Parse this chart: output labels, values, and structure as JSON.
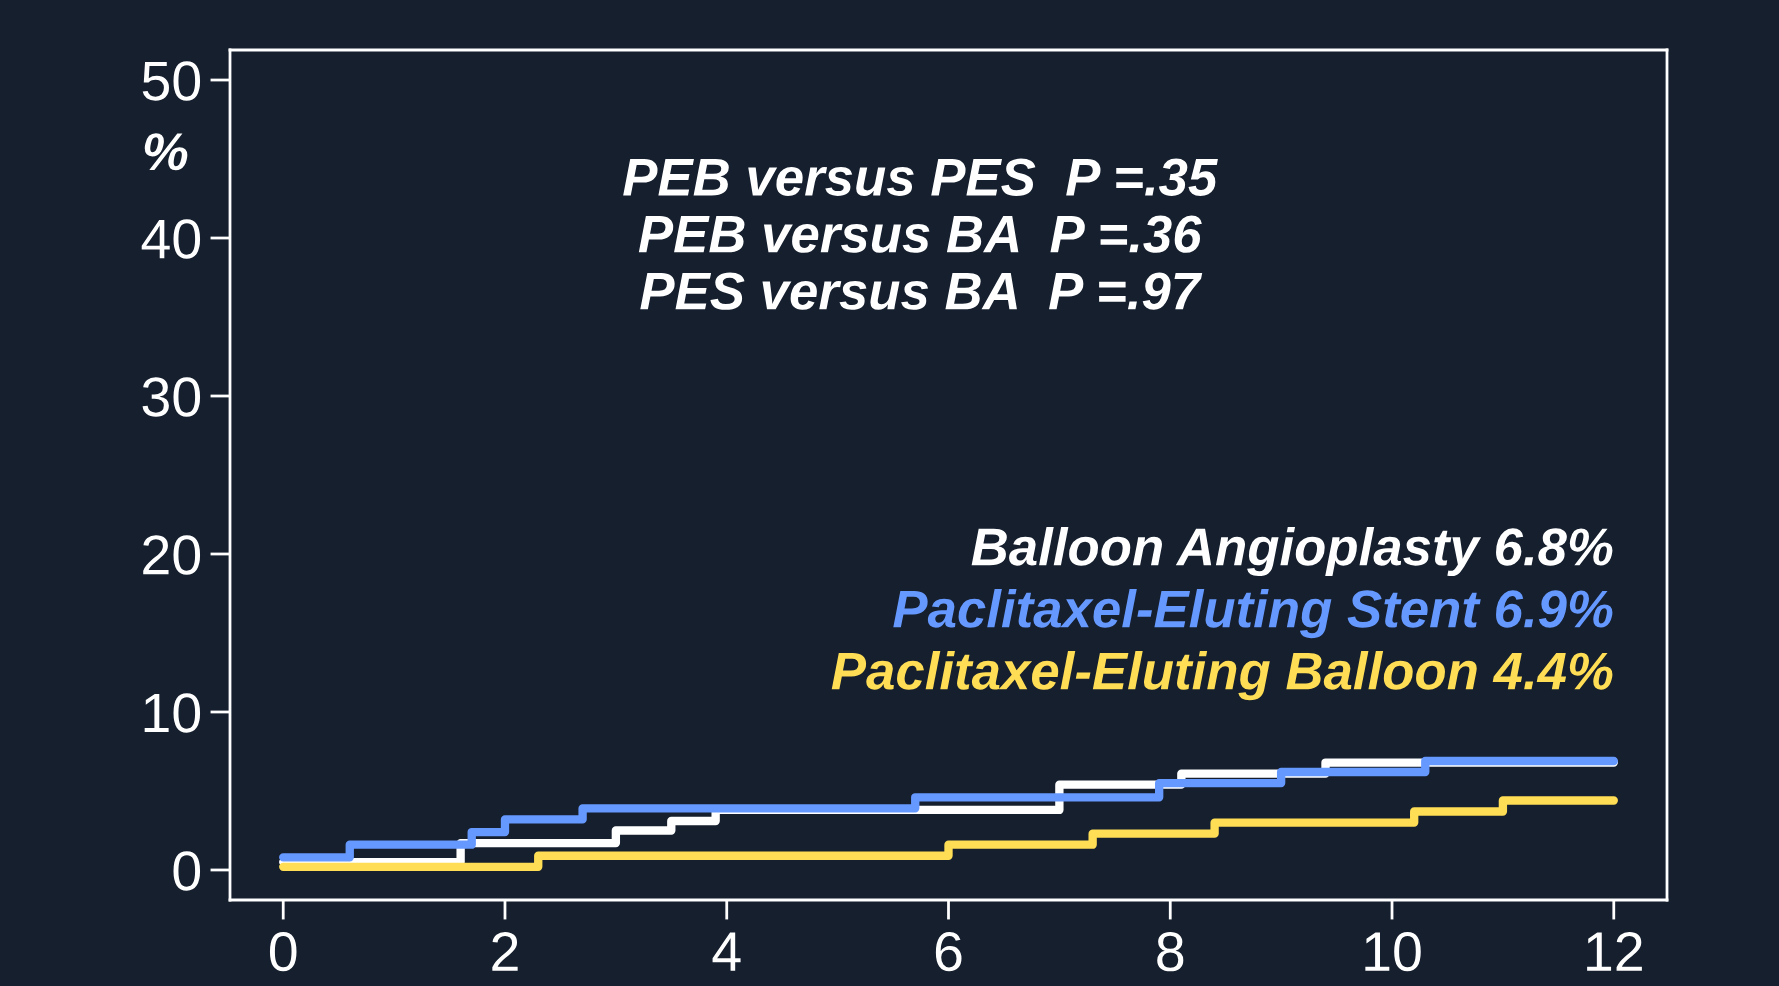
{
  "chart_data": {
    "type": "step",
    "annotations": [
      "PEB versus PES  P =.35",
      "PEB versus BA  P =.36",
      "PES versus BA  P =.97"
    ],
    "ylabel": "%",
    "series": [
      {
        "name": "Balloon Angioplasty 6.8%",
        "color": "#ffffff",
        "x": [
          0,
          1.6,
          3.0,
          3.5,
          3.9,
          7.0,
          8.1,
          9.4,
          12
        ],
        "values": [
          0.5,
          1.7,
          2.5,
          3.1,
          3.8,
          5.4,
          6.1,
          6.8,
          6.8
        ]
      },
      {
        "name": "Paclitaxel-Eluting Stent 6.9%",
        "color": "#6699ff",
        "x": [
          0,
          0.6,
          1.7,
          2.0,
          2.7,
          5.7,
          7.9,
          9.0,
          10.3,
          12
        ],
        "values": [
          0.8,
          1.6,
          2.4,
          3.2,
          3.9,
          4.6,
          5.5,
          6.2,
          6.9,
          6.9
        ]
      },
      {
        "name": "Paclitaxel-Eluting Balloon 4.4%",
        "color": "#ffdd55",
        "x": [
          0,
          2.3,
          6.0,
          7.3,
          8.4,
          10.2,
          11.0,
          12
        ],
        "values": [
          0.2,
          0.9,
          1.6,
          2.3,
          3.0,
          3.7,
          4.4,
          4.4
        ]
      }
    ],
    "xlim": [
      -0.48,
      12.48
    ],
    "xticks": [
      0,
      2,
      4,
      6,
      8,
      10,
      12
    ],
    "ylim": [
      -1.9,
      51.9
    ],
    "yticks": [
      0,
      10,
      20,
      30,
      40,
      50
    ],
    "legend": "right",
    "grid": false
  }
}
